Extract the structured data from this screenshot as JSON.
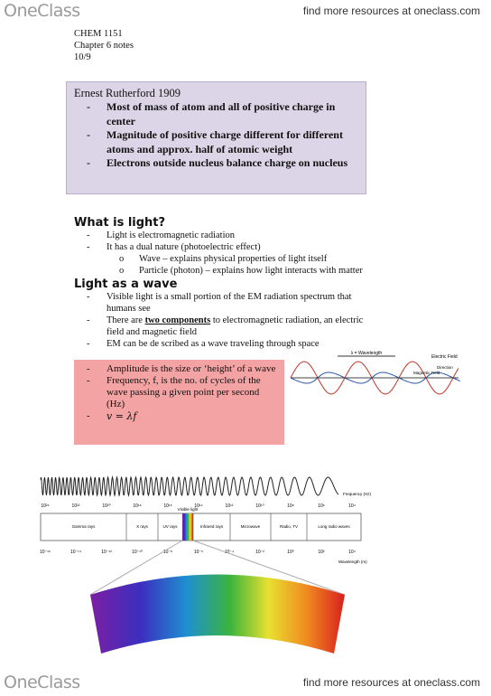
{
  "header": {
    "logo": "OneClass",
    "link": "find more resources at oneclass.com"
  },
  "course": [
    "CHEM 1151",
    "Chapter 6 notes",
    "10/9"
  ],
  "markers": {
    "bullet": "-",
    "sub_bullet": "o"
  },
  "rutherford": {
    "title": "Ernest Rutherford 1909",
    "bullets": [
      "Most of mass of atom and all of positive charge in center",
      "Magnitude of positive charge different for different atoms and approx. half of atomic weight",
      "Electrons outside nucleus balance charge on nucleus"
    ]
  },
  "light": {
    "heading": "What is light?",
    "bullets": [
      "Light is electromagnetic radiation",
      "It has a dual nature (photoelectric effect)"
    ],
    "sub_bullets": [
      "Wave – explains physical properties of light itself",
      "Particle (photon) – explains how light interacts with matter"
    ]
  },
  "wave": {
    "heading": "Light as a wave",
    "bullet_1": "Visible light is a small portion of the EM radiation spectrum that humans see",
    "bullet_2": [
      "There are ",
      "two components",
      " to electromagnetic radiation, an electric field and magnetic field"
    ],
    "bullet_3": "EM can be de scribed as a wave traveling through space"
  },
  "definitions": [
    "Amplitude is the size or ‘height’ of a wave",
    "Frequency, f, is  the no. of cycles of the wave passing a given point per second (Hz)",
    "v = λf"
  ],
  "wave_diagram": {
    "wavelength": "λ = Wavelength",
    "electric": "Electric Field",
    "magnetic": "Magnetic Field",
    "direction": "Direction"
  },
  "spectrum": {
    "frequency_label": "Frequency (Hz)",
    "wavelength_label": "Wavelength (m)",
    "visible": "Visible light",
    "bands": [
      "Gamma rays",
      "X rays",
      "UV rays",
      "Infrared rays",
      "Microwave",
      "Radio, TV",
      "Long radio waves"
    ],
    "frequency_ticks": [
      "10²⁴",
      "10²²",
      "10²⁰",
      "10¹⁸",
      "10¹⁶",
      "10¹⁴",
      "10¹²",
      "10¹⁰",
      "10⁸",
      "10⁶",
      "10⁴"
    ],
    "wavelength_ticks": [
      "10⁻¹⁶",
      "10⁻¹⁴",
      "10⁻¹²",
      "10⁻¹⁰",
      "10⁻⁸",
      "10⁻⁶",
      "10⁻⁴",
      "10⁻²",
      "10⁰",
      "10²",
      "10⁴"
    ]
  },
  "footer": {
    "logo": "OneClass",
    "link": "find more resources at oneclass.com"
  }
}
